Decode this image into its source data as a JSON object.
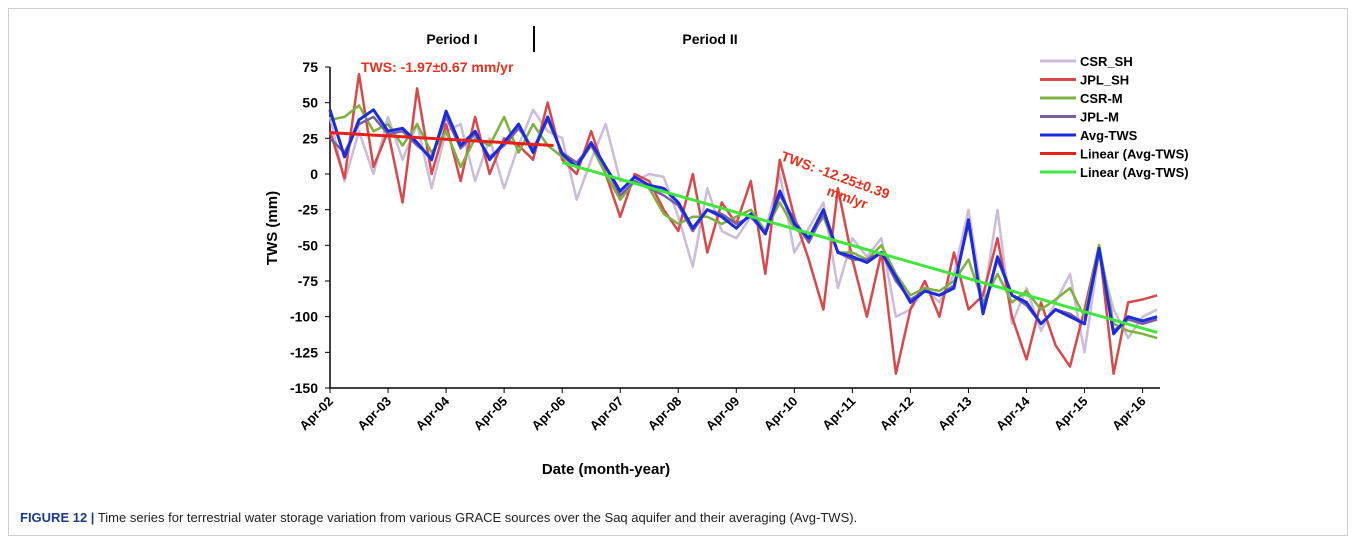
{
  "chart_data": {
    "type": "line",
    "period_labels": [
      "Period I",
      "Period II"
    ],
    "annotations": [
      {
        "lines": [
          "TWS: -1.97±0.67  mm/yr"
        ],
        "color": "#e8301c"
      },
      {
        "lines": [
          "TWS: -12.25±0.39",
          "mm/yr"
        ],
        "color": "#e8301c"
      }
    ],
    "xlabel": "Date (month-year)",
    "ylabel": "TWS (mm)",
    "xlim": [
      2002.25,
      2016.55
    ],
    "ylim": [
      -150,
      75
    ],
    "xticks": [
      {
        "value": 2002.25,
        "label": "Apr-02"
      },
      {
        "value": 2003.25,
        "label": "Apr-03"
      },
      {
        "value": 2004.25,
        "label": "Apr-04"
      },
      {
        "value": 2005.25,
        "label": "Apr-05"
      },
      {
        "value": 2006.25,
        "label": "Apr-06"
      },
      {
        "value": 2007.25,
        "label": "Apr-07"
      },
      {
        "value": 2008.25,
        "label": "Apr-08"
      },
      {
        "value": 2009.25,
        "label": "Apr-09"
      },
      {
        "value": 2010.25,
        "label": "Apr-10"
      },
      {
        "value": 2011.25,
        "label": "Apr-11"
      },
      {
        "value": 2012.25,
        "label": "Apr-12"
      },
      {
        "value": 2013.25,
        "label": "Apr-13"
      },
      {
        "value": 2014.25,
        "label": "Apr-14"
      },
      {
        "value": 2015.25,
        "label": "Apr-15"
      },
      {
        "value": 2016.25,
        "label": "Apr-16"
      }
    ],
    "yticks": [
      75,
      50,
      25,
      0,
      -25,
      -50,
      -75,
      -100,
      -125,
      -150
    ],
    "x": [
      2002.25,
      2002.5,
      2002.75,
      2003,
      2003.25,
      2003.5,
      2003.75,
      2004,
      2004.25,
      2004.5,
      2004.75,
      2005,
      2005.25,
      2005.5,
      2005.75,
      2006,
      2006.25,
      2006.5,
      2006.75,
      2007,
      2007.25,
      2007.5,
      2007.75,
      2008,
      2008.25,
      2008.5,
      2008.75,
      2009,
      2009.25,
      2009.5,
      2009.75,
      2010,
      2010.25,
      2010.5,
      2010.75,
      2011,
      2011.25,
      2011.5,
      2011.75,
      2012,
      2012.25,
      2012.5,
      2012.75,
      2013,
      2013.25,
      2013.5,
      2013.75,
      2014,
      2014.25,
      2014.5,
      2014.75,
      2015,
      2015.25,
      2015.5,
      2015.75,
      2016,
      2016.25,
      2016.5
    ],
    "series": [
      {
        "name": "CSR_SH",
        "color": "#cbbcd9",
        "values": [
          40,
          -5,
          30,
          0,
          40,
          10,
          35,
          -10,
          30,
          35,
          -5,
          25,
          -10,
          20,
          45,
          30,
          25,
          -18,
          10,
          35,
          -5,
          -5,
          0,
          -2,
          -30,
          -65,
          -10,
          -40,
          -45,
          -30,
          -40,
          0,
          -55,
          -38,
          -20,
          -80,
          -45,
          -58,
          -45,
          -100,
          -95,
          -80,
          -90,
          -70,
          -25,
          -90,
          -25,
          -105,
          -80,
          -110,
          -90,
          -70,
          -125,
          -55,
          -95,
          -115,
          -100,
          -95
        ]
      },
      {
        "name": "JPL_SH",
        "color": "#d9484a",
        "values": [
          30,
          -3,
          70,
          5,
          30,
          -20,
          60,
          0,
          35,
          -5,
          40,
          0,
          25,
          20,
          10,
          50,
          10,
          0,
          30,
          0,
          -30,
          0,
          -5,
          -25,
          -40,
          0,
          -55,
          -20,
          -35,
          -5,
          -70,
          10,
          -30,
          -60,
          -95,
          -10,
          -60,
          -100,
          -55,
          -140,
          -95,
          -75,
          -100,
          -55,
          -95,
          -85,
          -45,
          -100,
          -130,
          -90,
          -120,
          -135,
          -95,
          -50,
          -140,
          -90,
          -88,
          -85
        ]
      },
      {
        "name": "CSR-M",
        "color": "#7fb13f",
        "values": [
          38,
          40,
          48,
          30,
          35,
          20,
          35,
          15,
          30,
          5,
          25,
          20,
          40,
          15,
          35,
          20,
          12,
          5,
          20,
          0,
          -18,
          -5,
          -10,
          -28,
          -35,
          -30,
          -30,
          -35,
          -30,
          -25,
          -40,
          -20,
          -38,
          -45,
          -30,
          -55,
          -55,
          -60,
          -50,
          -70,
          -85,
          -80,
          -82,
          -75,
          -60,
          -90,
          -70,
          -90,
          -82,
          -95,
          -88,
          -80,
          -100,
          -50,
          -105,
          -110,
          -112,
          -115
        ]
      },
      {
        "name": "JPL-M",
        "color": "#7a5fa0",
        "values": [
          25,
          15,
          35,
          40,
          28,
          30,
          20,
          12,
          40,
          18,
          28,
          12,
          20,
          32,
          18,
          38,
          15,
          8,
          20,
          5,
          -15,
          -5,
          -10,
          -15,
          -22,
          -40,
          -25,
          -28,
          -35,
          -30,
          -42,
          -15,
          -32,
          -48,
          -28,
          -55,
          -60,
          -60,
          -55,
          -75,
          -88,
          -82,
          -85,
          -78,
          -35,
          -95,
          -60,
          -85,
          -92,
          -105,
          -95,
          -98,
          -105,
          -55,
          -110,
          -102,
          -105,
          -102
        ]
      },
      {
        "name": "Avg-TWS",
        "color": "#1a2be0",
        "values": [
          45,
          12,
          38,
          45,
          30,
          32,
          22,
          10,
          44,
          20,
          30,
          10,
          22,
          35,
          15,
          40,
          14,
          5,
          22,
          5,
          -12,
          -2,
          -8,
          -10,
          -20,
          -38,
          -25,
          -30,
          -38,
          -28,
          -42,
          -12,
          -35,
          -45,
          -25,
          -55,
          -58,
          -62,
          -55,
          -72,
          -90,
          -82,
          -85,
          -80,
          -32,
          -98,
          -58,
          -85,
          -90,
          -105,
          -95,
          -100,
          -105,
          -52,
          -112,
          -100,
          -103,
          -100
        ]
      },
      {
        "name": "Linear (Avg-TWS)",
        "color": "#e8201c",
        "x": [
          2002.25,
          2006.1
        ],
        "values": [
          29,
          20
        ]
      },
      {
        "name": "Linear (Avg-TWS)",
        "color": "#3ee83a",
        "x": [
          2006.25,
          2016.5
        ],
        "values": [
          8,
          -111
        ]
      }
    ]
  },
  "caption": {
    "label": "FIGURE 12 |",
    "text": "Time series for terrestrial water storage variation from various GRACE sources over the Saq aquifer and their averaging (Avg-TWS)."
  }
}
